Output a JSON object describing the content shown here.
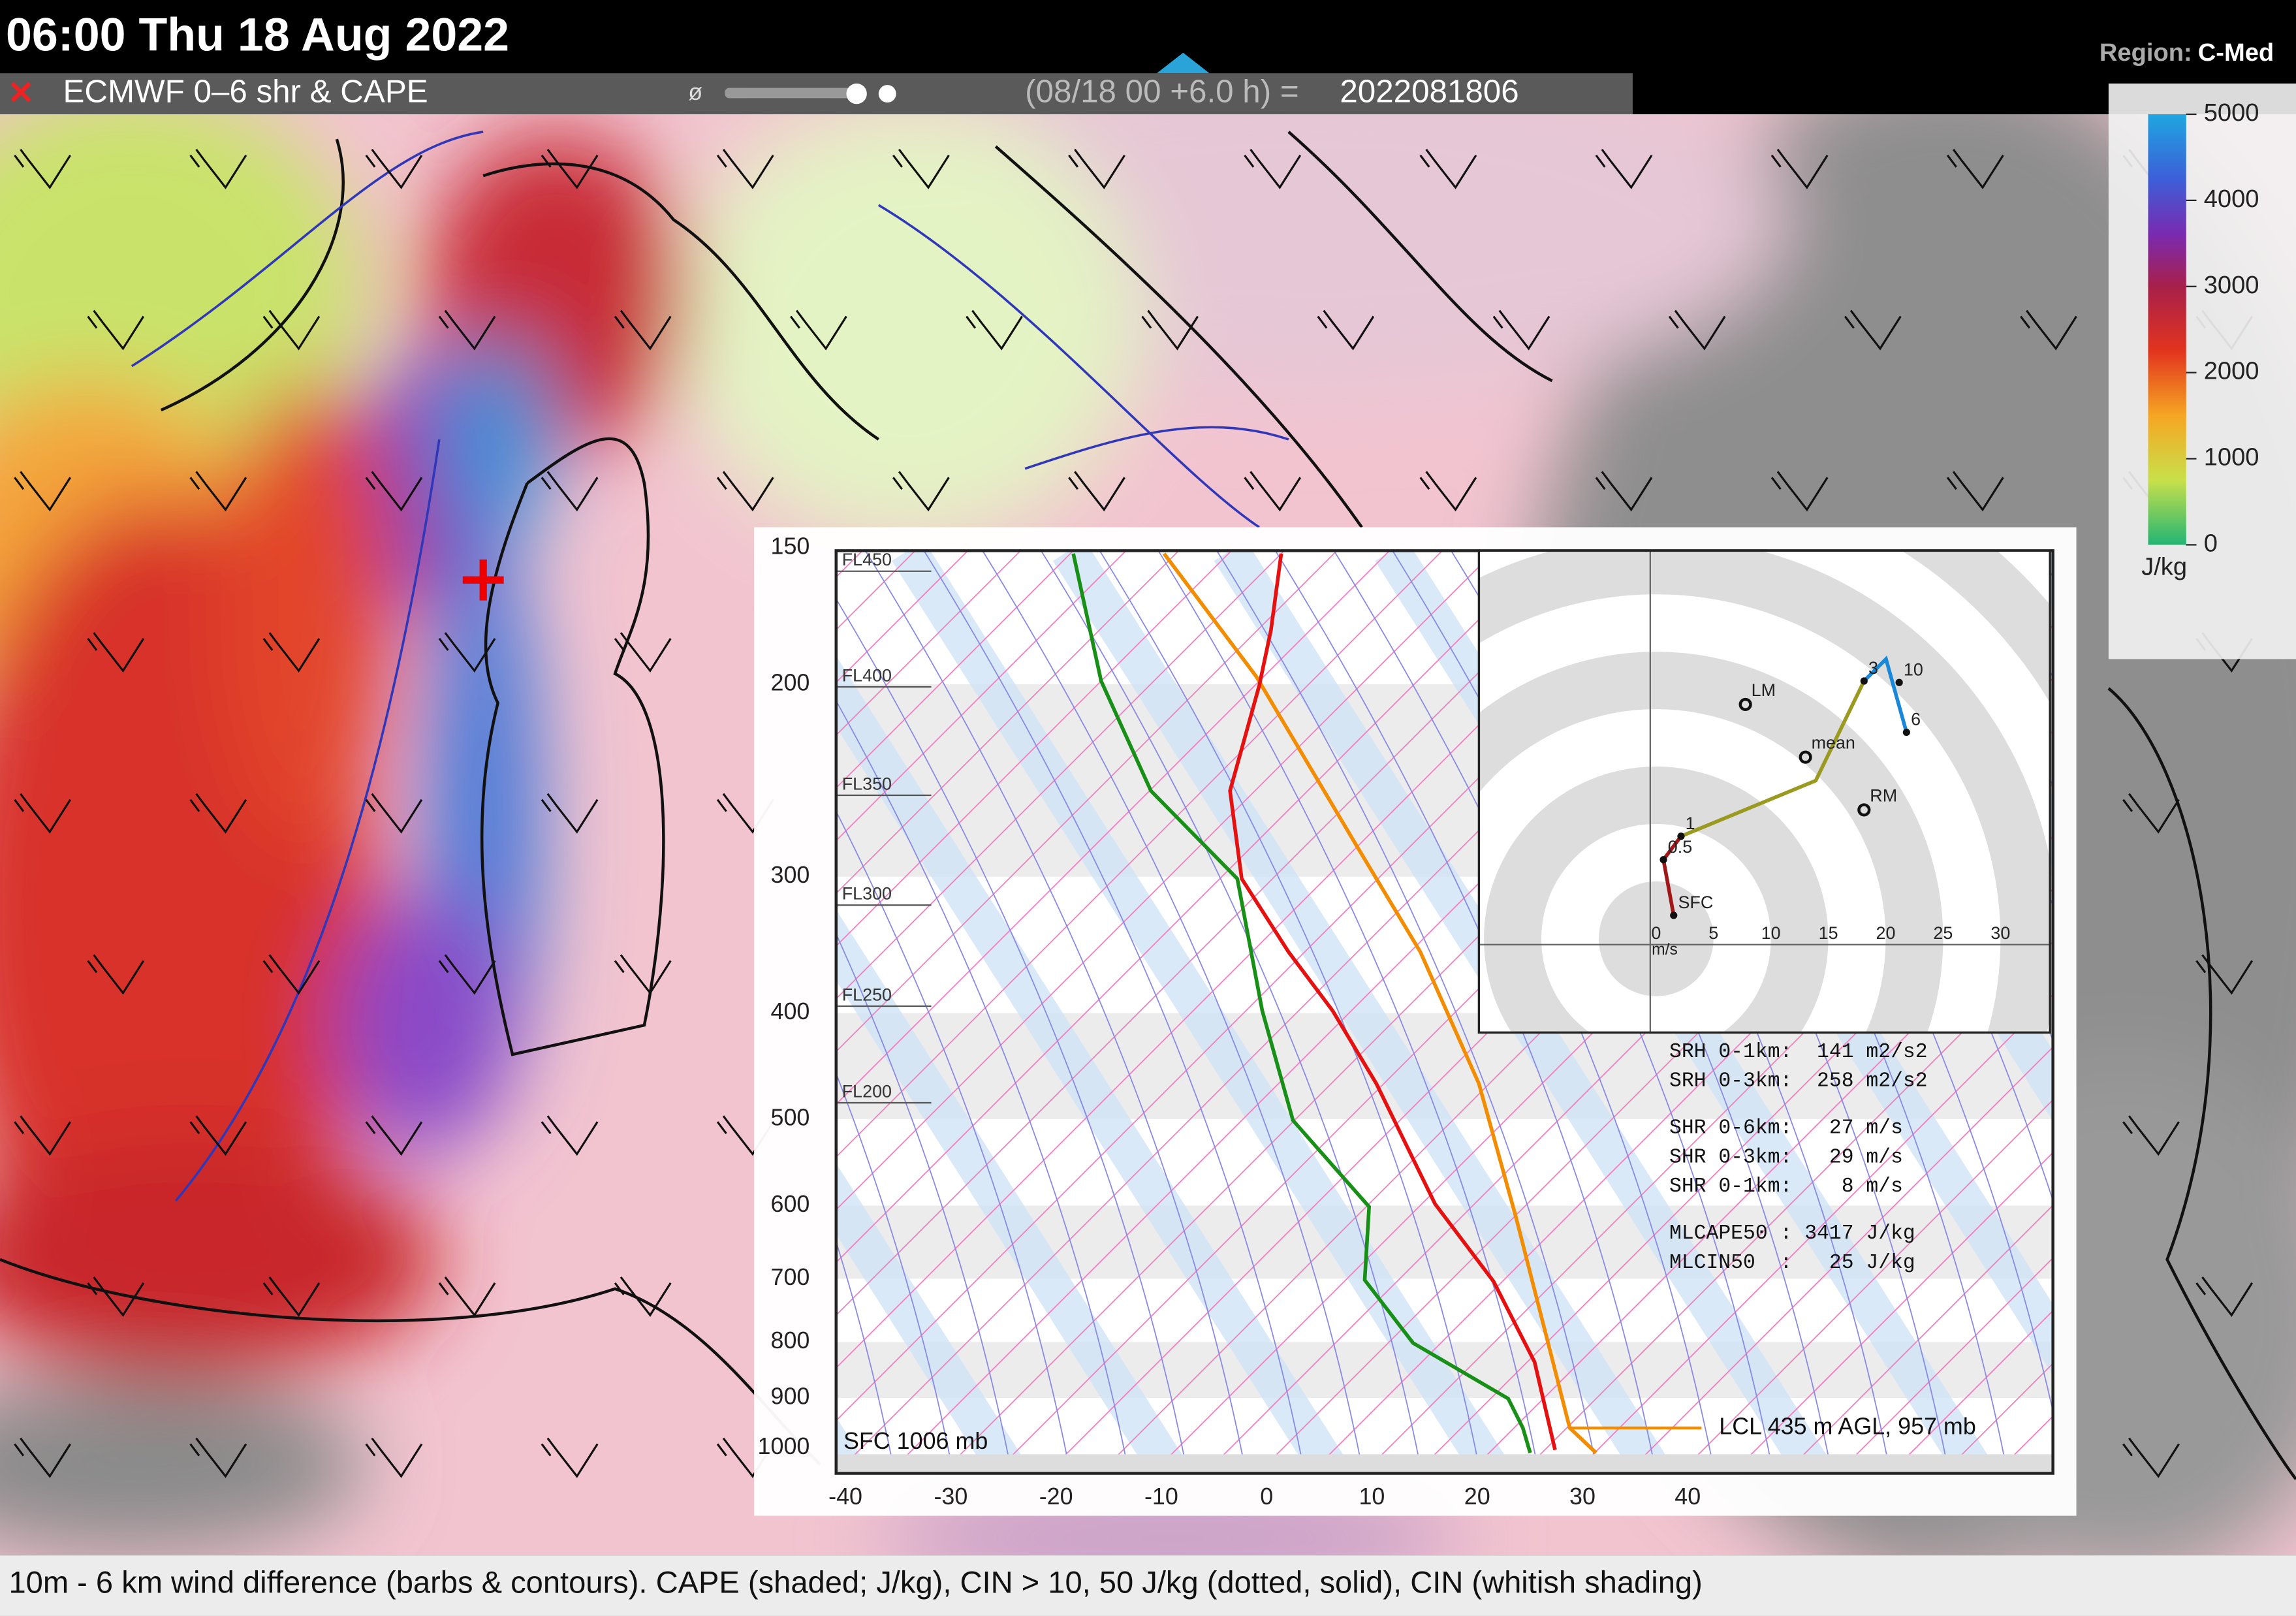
{
  "header": {
    "time": "06:00 Thu 18 Aug 2022",
    "region_label": "Region:",
    "region": "C-Med"
  },
  "toolbar": {
    "close": "✕",
    "product": "ECMWF 0–6 shr & CAPE",
    "opacity": "ø",
    "run": "(08/18 00 +6.0 h) =",
    "valid": "2022081806"
  },
  "colorbar": {
    "ticks": [
      "5000",
      "4000",
      "3000",
      "2000",
      "1000",
      "0"
    ],
    "unit": "J/kg"
  },
  "skewt": {
    "pressure_labels": [
      "150",
      "200",
      "300",
      "400",
      "500",
      "600",
      "700",
      "800",
      "900",
      "1000"
    ],
    "flight_levels": [
      "FL450",
      "FL400",
      "FL350",
      "FL300",
      "FL250",
      "FL200"
    ],
    "temperature_labels": [
      "-40",
      "-30",
      "-20",
      "-10",
      "0",
      "10",
      "20",
      "30",
      "40"
    ],
    "surface": "SFC 1006 mb",
    "lcl": "LCL 435 m AGL, 957 mb"
  },
  "hodograph": {
    "ring_labels": [
      "0",
      "5",
      "10",
      "15",
      "20",
      "25",
      "30"
    ],
    "unit": "m/s",
    "points": [
      "SFC",
      "0.5",
      "1",
      "3",
      "6",
      "10"
    ],
    "motions": [
      "LM",
      "mean",
      "RM"
    ]
  },
  "stats": [
    "SRH 0-1km:  141 m2/s2",
    "SRH 0-3km:  258 m2/s2",
    "SHR 0-6km:   27 m/s",
    "SHR 0-3km:   29 m/s",
    "SHR 0-1km:    8 m/s",
    "MLCAPE50 : 3417 J/kg",
    "MLCIN50  :   25 J/kg"
  ],
  "caption": "10m - 6 km wind difference (barbs & contours). CAPE (shaded; J/kg), CIN > 10, 50 J/kg (dotted, solid), CIN (whitish shading)"
}
